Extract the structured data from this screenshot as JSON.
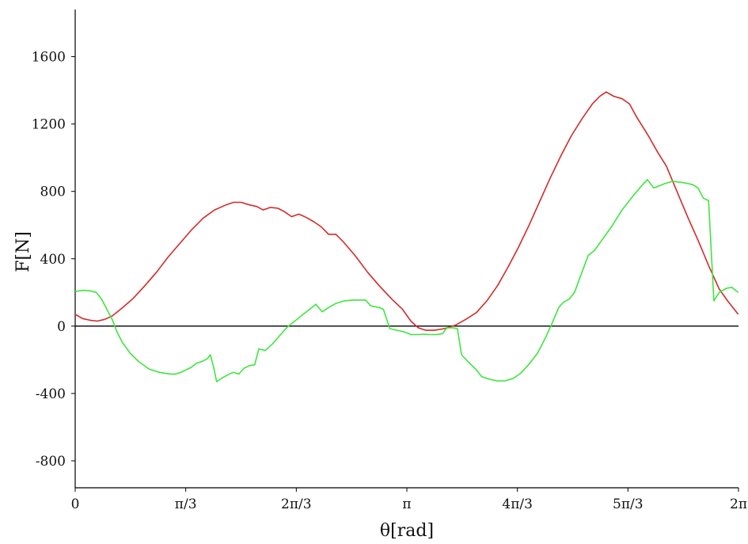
{
  "chart_data": {
    "type": "line",
    "xlabel": "θ[rad]",
    "ylabel": "F[N]",
    "xlim": [
      0,
      6.2832
    ],
    "ylim": [
      -960,
      1880
    ],
    "x_ticks": [
      {
        "value": 0,
        "label": "0"
      },
      {
        "value": 1.0472,
        "label": "π/3"
      },
      {
        "value": 2.0944,
        "label": "2π/3"
      },
      {
        "value": 3.1416,
        "label": "π"
      },
      {
        "value": 4.1888,
        "label": "4π/3"
      },
      {
        "value": 5.236,
        "label": "5π/3"
      },
      {
        "value": 6.2832,
        "label": "2π"
      }
    ],
    "y_ticks": [
      {
        "value": -800,
        "label": "-800"
      },
      {
        "value": -400,
        "label": "-400"
      },
      {
        "value": 0,
        "label": "0"
      },
      {
        "value": 400,
        "label": "400"
      },
      {
        "value": 800,
        "label": "800"
      },
      {
        "value": 1200,
        "label": "1200"
      },
      {
        "value": 1600,
        "label": "1600"
      }
    ],
    "zero_line": true,
    "grid": false,
    "series": [
      {
        "color": "#d42a2a",
        "points": [
          [
            0.0,
            70
          ],
          [
            0.07,
            45
          ],
          [
            0.14,
            35
          ],
          [
            0.21,
            30
          ],
          [
            0.28,
            40
          ],
          [
            0.35,
            60
          ],
          [
            0.45,
            110
          ],
          [
            0.55,
            165
          ],
          [
            0.66,
            240
          ],
          [
            0.77,
            320
          ],
          [
            0.88,
            410
          ],
          [
            0.99,
            490
          ],
          [
            1.1,
            570
          ],
          [
            1.21,
            640
          ],
          [
            1.32,
            690
          ],
          [
            1.43,
            720
          ],
          [
            1.5,
            735
          ],
          [
            1.57,
            735
          ],
          [
            1.65,
            720
          ],
          [
            1.72,
            710
          ],
          [
            1.78,
            690
          ],
          [
            1.85,
            705
          ],
          [
            1.92,
            700
          ],
          [
            1.98,
            680
          ],
          [
            2.05,
            650
          ],
          [
            2.12,
            665
          ],
          [
            2.19,
            645
          ],
          [
            2.26,
            620
          ],
          [
            2.33,
            590
          ],
          [
            2.4,
            545
          ],
          [
            2.47,
            545
          ],
          [
            2.54,
            500
          ],
          [
            2.65,
            420
          ],
          [
            2.77,
            320
          ],
          [
            2.88,
            240
          ],
          [
            3.0,
            160
          ],
          [
            3.1,
            100
          ],
          [
            3.18,
            30
          ],
          [
            3.25,
            -10
          ],
          [
            3.32,
            -25
          ],
          [
            3.4,
            -25
          ],
          [
            3.5,
            -15
          ],
          [
            3.6,
            5
          ],
          [
            3.7,
            40
          ],
          [
            3.8,
            80
          ],
          [
            3.9,
            150
          ],
          [
            4.0,
            240
          ],
          [
            4.1,
            350
          ],
          [
            4.2,
            470
          ],
          [
            4.3,
            600
          ],
          [
            4.4,
            740
          ],
          [
            4.5,
            880
          ],
          [
            4.6,
            1010
          ],
          [
            4.7,
            1130
          ],
          [
            4.8,
            1230
          ],
          [
            4.9,
            1320
          ],
          [
            4.97,
            1365
          ],
          [
            5.03,
            1390
          ],
          [
            5.1,
            1365
          ],
          [
            5.18,
            1350
          ],
          [
            5.25,
            1320
          ],
          [
            5.32,
            1240
          ],
          [
            5.42,
            1140
          ],
          [
            5.52,
            1030
          ],
          [
            5.6,
            950
          ],
          [
            5.7,
            800
          ],
          [
            5.8,
            650
          ],
          [
            5.9,
            510
          ],
          [
            6.0,
            360
          ],
          [
            6.1,
            220
          ],
          [
            6.18,
            150
          ],
          [
            6.28,
            70
          ]
        ]
      },
      {
        "color": "#3ee63e",
        "points": [
          [
            0.0,
            205
          ],
          [
            0.07,
            212
          ],
          [
            0.14,
            210
          ],
          [
            0.2,
            200
          ],
          [
            0.25,
            160
          ],
          [
            0.3,
            100
          ],
          [
            0.35,
            40
          ],
          [
            0.4,
            -40
          ],
          [
            0.45,
            -100
          ],
          [
            0.52,
            -160
          ],
          [
            0.6,
            -210
          ],
          [
            0.7,
            -255
          ],
          [
            0.8,
            -275
          ],
          [
            0.9,
            -285
          ],
          [
            0.95,
            -285
          ],
          [
            1.0,
            -275
          ],
          [
            1.05,
            -260
          ],
          [
            1.1,
            -245
          ],
          [
            1.15,
            -220
          ],
          [
            1.2,
            -210
          ],
          [
            1.25,
            -195
          ],
          [
            1.28,
            -170
          ],
          [
            1.31,
            -240
          ],
          [
            1.34,
            -330
          ],
          [
            1.4,
            -305
          ],
          [
            1.46,
            -285
          ],
          [
            1.5,
            -275
          ],
          [
            1.55,
            -285
          ],
          [
            1.6,
            -250
          ],
          [
            1.65,
            -235
          ],
          [
            1.7,
            -230
          ],
          [
            1.74,
            -135
          ],
          [
            1.8,
            -145
          ],
          [
            1.87,
            -105
          ],
          [
            1.94,
            -55
          ],
          [
            2.01,
            -5
          ],
          [
            2.08,
            30
          ],
          [
            2.15,
            65
          ],
          [
            2.22,
            100
          ],
          [
            2.28,
            130
          ],
          [
            2.34,
            85
          ],
          [
            2.4,
            110
          ],
          [
            2.47,
            135
          ],
          [
            2.55,
            150
          ],
          [
            2.63,
            155
          ],
          [
            2.7,
            155
          ],
          [
            2.75,
            155
          ],
          [
            2.8,
            120
          ],
          [
            2.88,
            110
          ],
          [
            2.92,
            100
          ],
          [
            2.98,
            -15
          ],
          [
            3.05,
            -25
          ],
          [
            3.12,
            -35
          ],
          [
            3.18,
            -50
          ],
          [
            3.25,
            -50
          ],
          [
            3.3,
            -48
          ],
          [
            3.35,
            -50
          ],
          [
            3.42,
            -50
          ],
          [
            3.48,
            -45
          ],
          [
            3.52,
            -10
          ],
          [
            3.58,
            -10
          ],
          [
            3.62,
            -15
          ],
          [
            3.66,
            -170
          ],
          [
            3.72,
            -210
          ],
          [
            3.8,
            -260
          ],
          [
            3.85,
            -300
          ],
          [
            3.92,
            -315
          ],
          [
            4.0,
            -325
          ],
          [
            4.07,
            -325
          ],
          [
            4.15,
            -310
          ],
          [
            4.22,
            -280
          ],
          [
            4.3,
            -225
          ],
          [
            4.38,
            -160
          ],
          [
            4.45,
            -75
          ],
          [
            4.52,
            20
          ],
          [
            4.58,
            110
          ],
          [
            4.62,
            140
          ],
          [
            4.68,
            160
          ],
          [
            4.73,
            200
          ],
          [
            4.8,
            320
          ],
          [
            4.86,
            420
          ],
          [
            4.92,
            450
          ],
          [
            5.0,
            520
          ],
          [
            5.08,
            590
          ],
          [
            5.18,
            690
          ],
          [
            5.28,
            770
          ],
          [
            5.36,
            830
          ],
          [
            5.42,
            870
          ],
          [
            5.48,
            820
          ],
          [
            5.58,
            845
          ],
          [
            5.66,
            860
          ],
          [
            5.78,
            850
          ],
          [
            5.85,
            840
          ],
          [
            5.9,
            820
          ],
          [
            5.95,
            760
          ],
          [
            6.0,
            745
          ],
          [
            6.05,
            150
          ],
          [
            6.1,
            200
          ],
          [
            6.17,
            225
          ],
          [
            6.22,
            230
          ],
          [
            6.28,
            200
          ]
        ]
      }
    ]
  }
}
